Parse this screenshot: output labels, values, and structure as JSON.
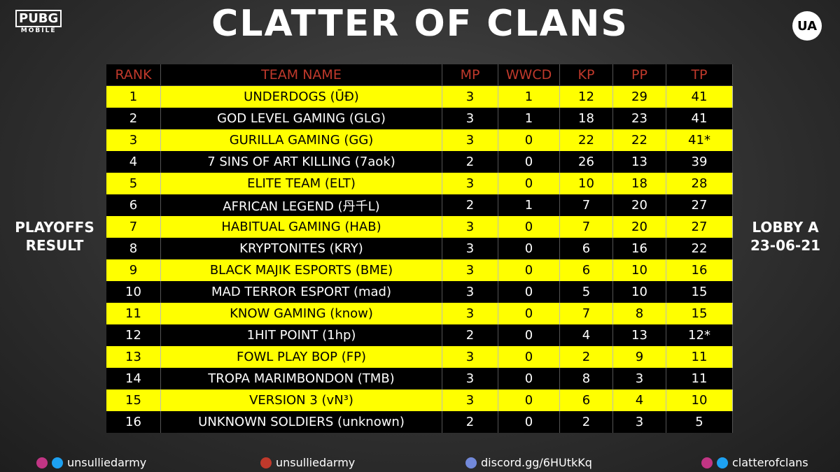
{
  "header": {
    "logo_left": [
      "PUBG",
      "MOBILE"
    ],
    "logo_right": "UA",
    "title": "CLATTER OF CLANS"
  },
  "side_left": [
    "PLAYOFFS",
    "RESULT"
  ],
  "side_right": [
    "LOBBY A",
    "23-06-21"
  ],
  "table": {
    "columns": [
      "RANK",
      "TEAM NAME",
      "MP",
      "WWCD",
      "KP",
      "PP",
      "TP"
    ],
    "rows": [
      [
        1,
        "UNDERDOGS (ŪĐ)",
        3,
        1,
        12,
        29,
        41
      ],
      [
        2,
        "GOD LEVEL GAMING (GLG)",
        3,
        1,
        18,
        23,
        41
      ],
      [
        3,
        "GURILLA GAMING (GG)",
        3,
        0,
        22,
        22,
        "41*"
      ],
      [
        4,
        "7 SINS OF ART KILLING (7aok)",
        2,
        0,
        26,
        13,
        39
      ],
      [
        5,
        "ELITE TEAM (ELT)",
        3,
        0,
        10,
        18,
        28
      ],
      [
        6,
        "AFRICAN LEGEND (丹千L)",
        2,
        1,
        7,
        20,
        27
      ],
      [
        7,
        "HABITUAL GAMING (HAB)",
        3,
        0,
        7,
        20,
        27
      ],
      [
        8,
        "KRYPTONITES (KRY)",
        3,
        0,
        6,
        16,
        22
      ],
      [
        9,
        "BLACK MAJIK ESPORTS (BME)",
        3,
        0,
        6,
        10,
        16
      ],
      [
        10,
        "MAD TERROR ESPORT (mad)",
        3,
        0,
        5,
        10,
        15
      ],
      [
        11,
        "KNOW GAMING (know)",
        3,
        0,
        7,
        8,
        15
      ],
      [
        12,
        "1HIT POINT (1hp)",
        2,
        0,
        4,
        13,
        "12*"
      ],
      [
        13,
        "FOWL PLAY BOP (FP)",
        3,
        0,
        2,
        9,
        11
      ],
      [
        14,
        "TROPA MARIMBONDON (TMB)",
        3,
        0,
        8,
        3,
        11
      ],
      [
        15,
        "VERSION 3 (vN³)",
        3,
        0,
        6,
        4,
        10
      ],
      [
        16,
        "UNKNOWN SOLDIERS (unknown)",
        2,
        0,
        2,
        3,
        5
      ]
    ]
  },
  "footer": [
    "unsulliedarmy",
    "unsulliedarmy",
    "discord.gg/6HUtkKq",
    "clatterofclans"
  ]
}
